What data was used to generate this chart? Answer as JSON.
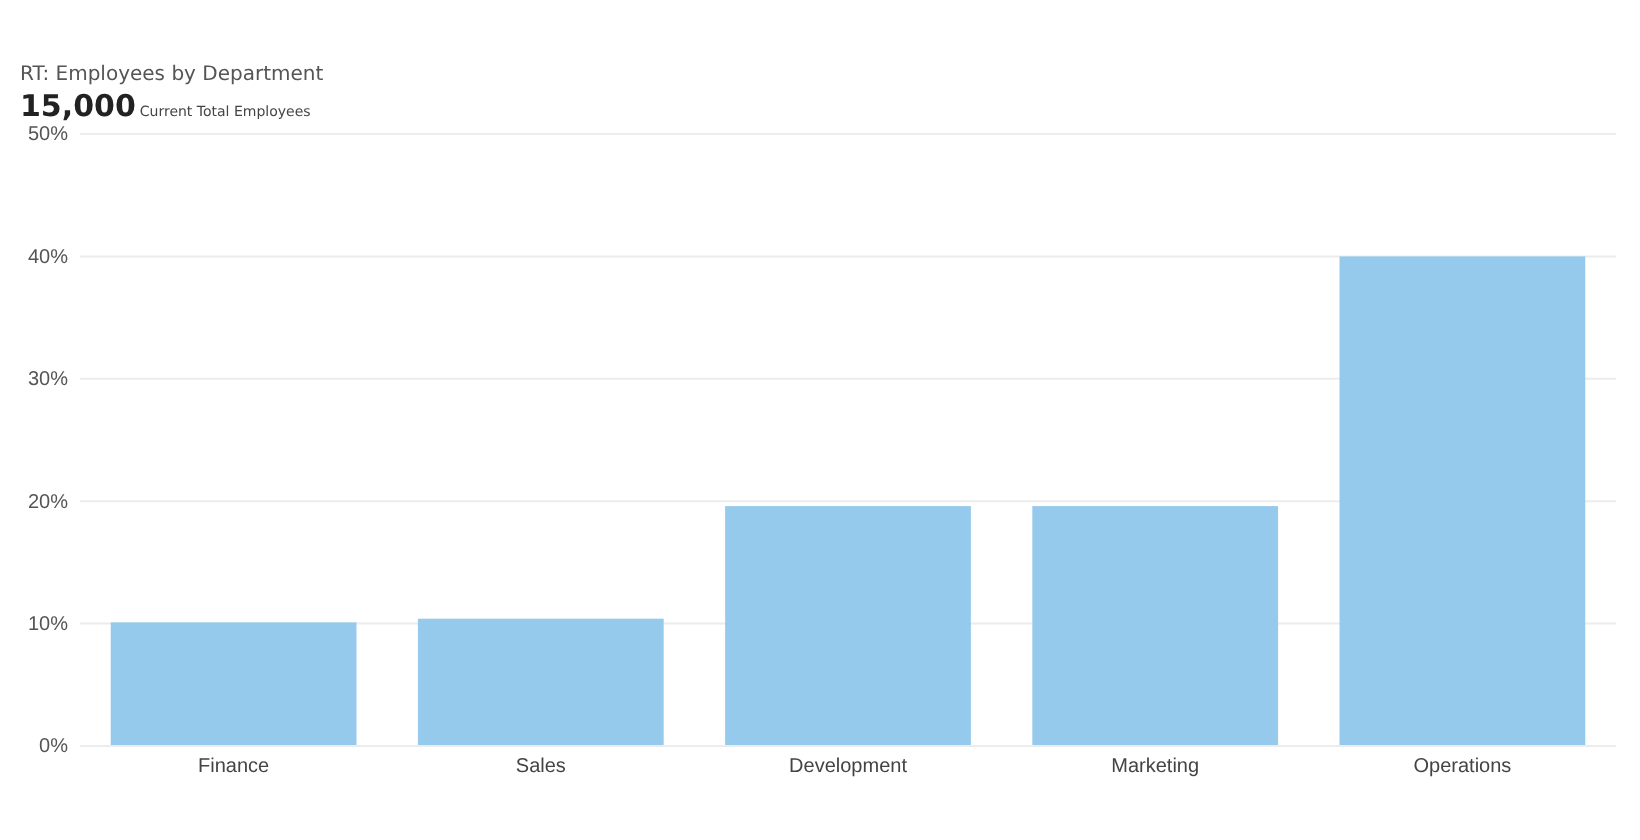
{
  "chart_data": {
    "type": "bar",
    "title": "RT: Employees by Department",
    "subtitle": "Current Total Employees",
    "annotations": [
      "15,000"
    ],
    "categories": [
      "Finance",
      "Sales",
      "Development",
      "Marketing",
      "Operations"
    ],
    "values": [
      10.1,
      10.4,
      19.6,
      19.6,
      40.0
    ],
    "color": "#95caec",
    "ylim": [
      0,
      50
    ],
    "yticks": [
      {
        "value": 0,
        "label": "0%"
      },
      {
        "value": 10,
        "label": "10%"
      },
      {
        "value": 20,
        "label": "20%"
      },
      {
        "value": 30,
        "label": "30%"
      },
      {
        "value": 40,
        "label": "40%"
      },
      {
        "value": 50,
        "label": "50%"
      }
    ],
    "grid": "y"
  }
}
